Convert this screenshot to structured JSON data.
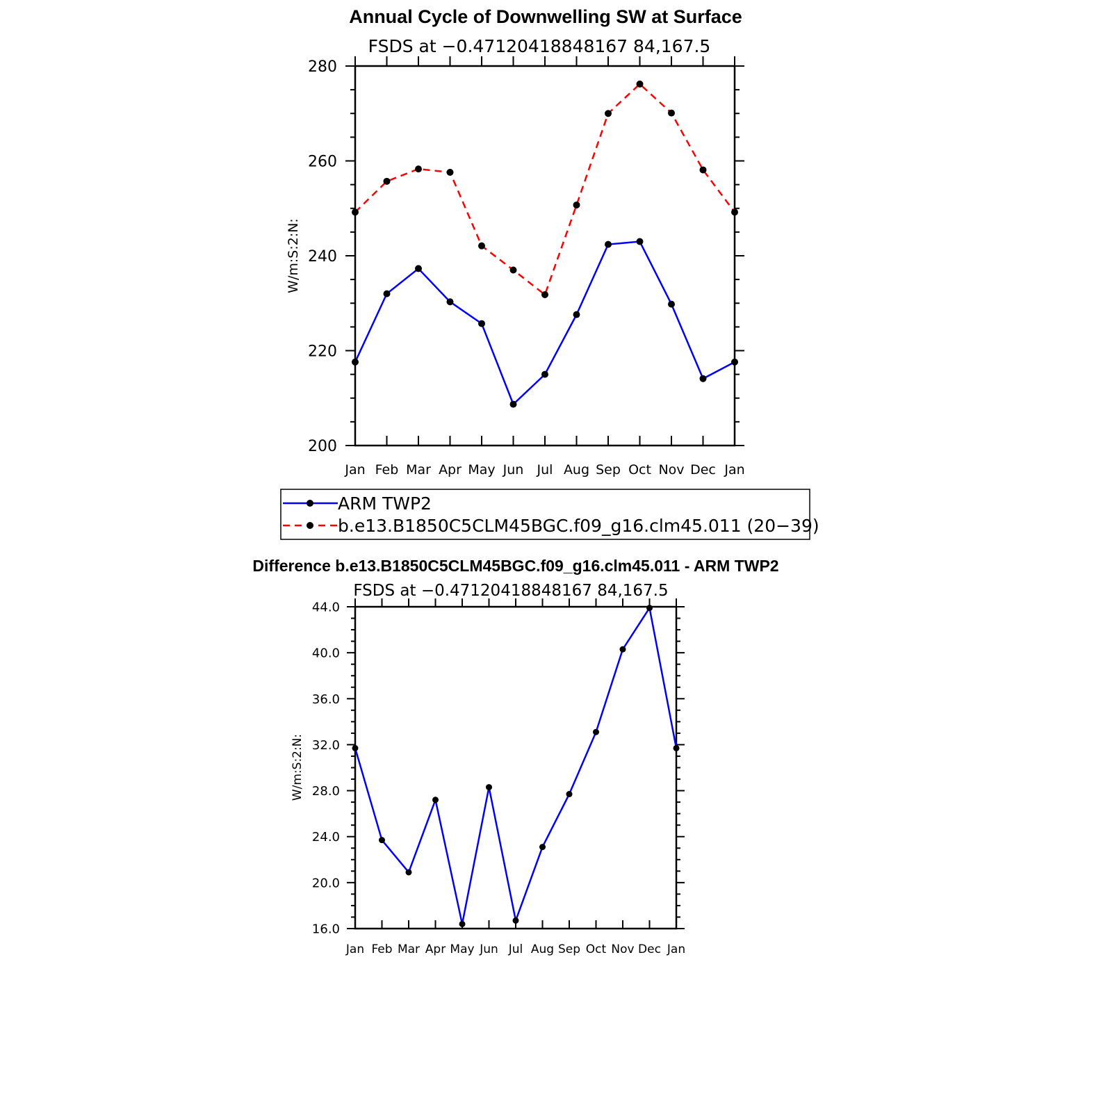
{
  "chart_data": [
    {
      "type": "line",
      "title": "Annual Cycle of Downwelling SW at Surface",
      "subtitle": "FSDS at −0.47120418848167 84,167.5",
      "ylabel": "W/m:S:2:N:",
      "xlabel": "",
      "ylim": [
        200,
        280
      ],
      "yticks": [
        "200",
        "220",
        "240",
        "260",
        "280"
      ],
      "categories": [
        "Jan",
        "Feb",
        "Mar",
        "Apr",
        "May",
        "Jun",
        "Jul",
        "Aug",
        "Sep",
        "Oct",
        "Nov",
        "Dec",
        "Jan"
      ],
      "grid": false,
      "legend_position": "below",
      "series": [
        {
          "name": "ARM TWP2",
          "color": "#0000ff",
          "dash": "solid",
          "values": [
            217.6,
            232.0,
            237.3,
            230.3,
            225.7,
            208.7,
            215.0,
            227.6,
            242.4,
            243.0,
            229.8,
            214.1,
            217.6
          ]
        },
        {
          "name": "b.e13.B1850C5CLM45BGC.f09_g16.clm45.011 (20−39)",
          "color": "#ff0000",
          "dash": "dashed",
          "values": [
            249.2,
            255.7,
            258.3,
            257.6,
            242.1,
            237.0,
            231.8,
            250.7,
            270.0,
            276.2,
            270.1,
            258.1,
            249.2
          ]
        }
      ]
    },
    {
      "type": "line",
      "title": "Difference b.e13.B1850C5CLM45BGC.f09_g16.clm45.011 - ARM TWP2",
      "subtitle": "FSDS at −0.47120418848167 84,167.5",
      "ylabel": "W/m:S:2:N:",
      "xlabel": "",
      "ylim": [
        16,
        44
      ],
      "yticks": [
        "16.0",
        "20.0",
        "24.0",
        "28.0",
        "32.0",
        "36.0",
        "40.0",
        "44.0"
      ],
      "categories": [
        "Jan",
        "Feb",
        "Mar",
        "Apr",
        "May",
        "Jun",
        "Jul",
        "Aug",
        "Sep",
        "Oct",
        "Nov",
        "Dec",
        "Jan"
      ],
      "grid": false,
      "series": [
        {
          "color": "#0000ff",
          "dash": "solid",
          "values": [
            31.7,
            23.7,
            20.9,
            27.2,
            16.4,
            28.3,
            16.7,
            23.1,
            27.7,
            33.1,
            40.3,
            43.9,
            31.7
          ]
        }
      ]
    }
  ]
}
